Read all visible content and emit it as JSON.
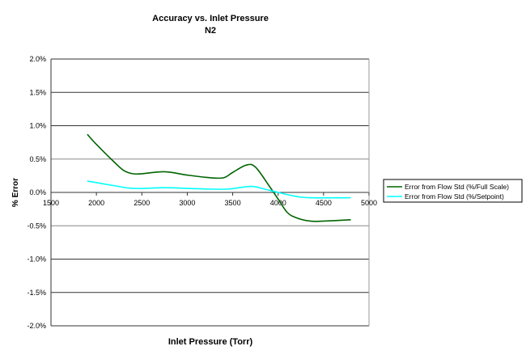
{
  "chart_data": {
    "type": "line",
    "title": "Accuracy vs. Inlet Pressure",
    "subtitle": "N2",
    "xlabel": "Inlet Pressure (Torr)",
    "ylabel": "% Error",
    "xlim": [
      1500,
      5000
    ],
    "ylim": [
      -2.0,
      2.0
    ],
    "xticks": [
      "1500",
      "2000",
      "2500",
      "3000",
      "3500",
      "4000",
      "4500",
      "5000"
    ],
    "yticks": [
      "2.0%",
      "1.5%",
      "1.0%",
      "0.5%",
      "0.0%",
      "-0.5%",
      "-1.0%",
      "-1.5%",
      "-2.0%"
    ],
    "grid": true,
    "legend_position": "right",
    "series": [
      {
        "name": "Error from Flow Std (%/Full Scale)",
        "color": "#006400",
        "x": [
          1900,
          2000,
          2200,
          2300,
          2400,
          2500,
          2750,
          3000,
          3250,
          3400,
          3500,
          3650,
          3750,
          3900,
          4000,
          4100,
          4200,
          4350,
          4500,
          4800
        ],
        "y": [
          0.87,
          0.72,
          0.45,
          0.33,
          0.28,
          0.28,
          0.31,
          0.26,
          0.22,
          0.22,
          0.3,
          0.41,
          0.38,
          0.1,
          -0.1,
          -0.3,
          -0.38,
          -0.43,
          -0.43,
          -0.41
        ]
      },
      {
        "name": "Error from Flow Std (%/Setpoint)",
        "color": "#00FFFF",
        "x": [
          1900,
          2200,
          2400,
          2750,
          3000,
          3250,
          3450,
          3700,
          3850,
          4000,
          4200,
          4350,
          4800
        ],
        "y": [
          0.17,
          0.1,
          0.06,
          0.07,
          0.06,
          0.05,
          0.05,
          0.09,
          0.05,
          0.0,
          -0.06,
          -0.08,
          -0.08
        ]
      }
    ]
  }
}
